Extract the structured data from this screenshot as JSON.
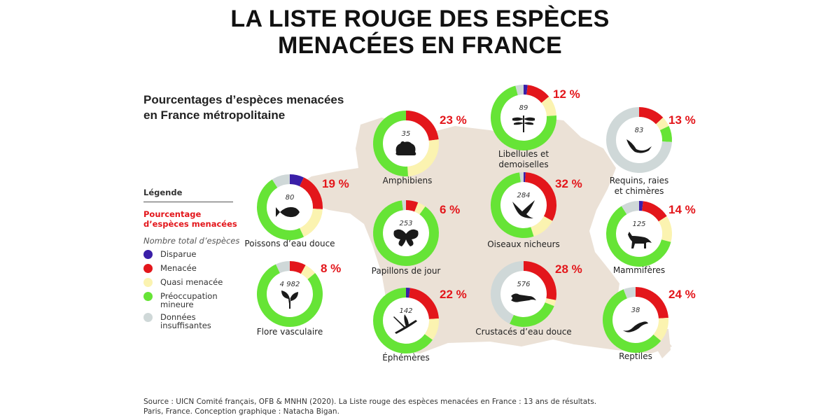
{
  "title": {
    "line1": "LA LISTE ROUGE DES ESPÈCES",
    "line2": "MENACÉES EN FRANCE"
  },
  "subtitle": {
    "line1": "Pourcentages d’espèces menacées",
    "line2": "en France métropolitaine"
  },
  "legend": {
    "title": "Légende",
    "pct_label": "Pourcentage d’espèces menacées",
    "total_label": "Nombre total d’espèces",
    "items": [
      {
        "label": "Disparue",
        "color": "#3a1fa8"
      },
      {
        "label": "Menacée",
        "color": "#e3161b"
      },
      {
        "label": "Quasi menacée",
        "color": "#fbf3b0"
      },
      {
        "label": "Préoccupation mineure",
        "color": "#66e436"
      },
      {
        "label": "Données insuffisantes",
        "color": "#cfd8d8"
      }
    ]
  },
  "source": {
    "line1": "Source : UICN Comité français, OFB & MNHN (2020). La Liste rouge des espèces menacées en France : 13 ans de résultats.",
    "line2": "Paris, France. Conception graphique : Natacha Bigan."
  },
  "chart_data": {
    "type": "pie",
    "variant": "donut",
    "categories_order": [
      "Disparue",
      "Menacée",
      "Quasi menacée",
      "Préoccupation mineure",
      "Données insuffisantes"
    ],
    "groups": [
      {
        "label": "Amphibiens",
        "pct_text": "23 %",
        "threatened_pct": 23,
        "total": "35",
        "icon": "frog-icon",
        "segments": [
          0,
          23,
          26,
          51,
          0
        ]
      },
      {
        "label": "Libellules et demoiselles",
        "pct_text": "12 %",
        "threatened_pct": 12,
        "total": "89",
        "icon": "dragonfly-icon",
        "segments": [
          2,
          12,
          10,
          72,
          4
        ]
      },
      {
        "label": "Requins, raies et chimères",
        "pct_text": "13 %",
        "threatened_pct": 13,
        "total": "83",
        "icon": "shark-icon",
        "segments": [
          0,
          13,
          5,
          8,
          74
        ]
      },
      {
        "label": "Poissons d’eau douce",
        "pct_text": "19 %",
        "threatened_pct": 19,
        "total": "80",
        "icon": "fish-icon",
        "segments": [
          7,
          19,
          17,
          48,
          9
        ]
      },
      {
        "label": "Papillons de jour",
        "pct_text": "6 %",
        "threatened_pct": 6,
        "total": "253",
        "icon": "butterfly-icon",
        "segments": [
          0,
          6,
          4,
          88,
          2
        ]
      },
      {
        "label": "Oiseaux nicheurs",
        "pct_text": "32 %",
        "threatened_pct": 32,
        "total": "284",
        "icon": "bird-icon",
        "segments": [
          1,
          32,
          12,
          53,
          2
        ]
      },
      {
        "label": "Mammifères",
        "pct_text": "14 %",
        "threatened_pct": 14,
        "total": "125",
        "icon": "fox-icon",
        "segments": [
          2,
          14,
          13,
          62,
          9
        ]
      },
      {
        "label": "Flore vasculaire",
        "pct_text": "8 %",
        "threatened_pct": 8,
        "total": "4 982",
        "icon": "plant-icon",
        "segments": [
          0,
          8,
          6,
          79,
          7
        ]
      },
      {
        "label": "Éphémères",
        "pct_text": "22 %",
        "threatened_pct": 22,
        "total": "142",
        "icon": "mayfly-icon",
        "segments": [
          2,
          22,
          11,
          65,
          0
        ]
      },
      {
        "label": "Crustacés d’eau douce",
        "pct_text": "28 %",
        "threatened_pct": 28,
        "total": "576",
        "icon": "crayfish-icon",
        "segments": [
          0,
          28,
          3,
          26,
          43
        ]
      },
      {
        "label": "Reptiles",
        "pct_text": "24 %",
        "threatened_pct": 24,
        "total": "38",
        "icon": "lizard-icon",
        "segments": [
          0,
          24,
          12,
          58,
          6
        ]
      }
    ]
  }
}
